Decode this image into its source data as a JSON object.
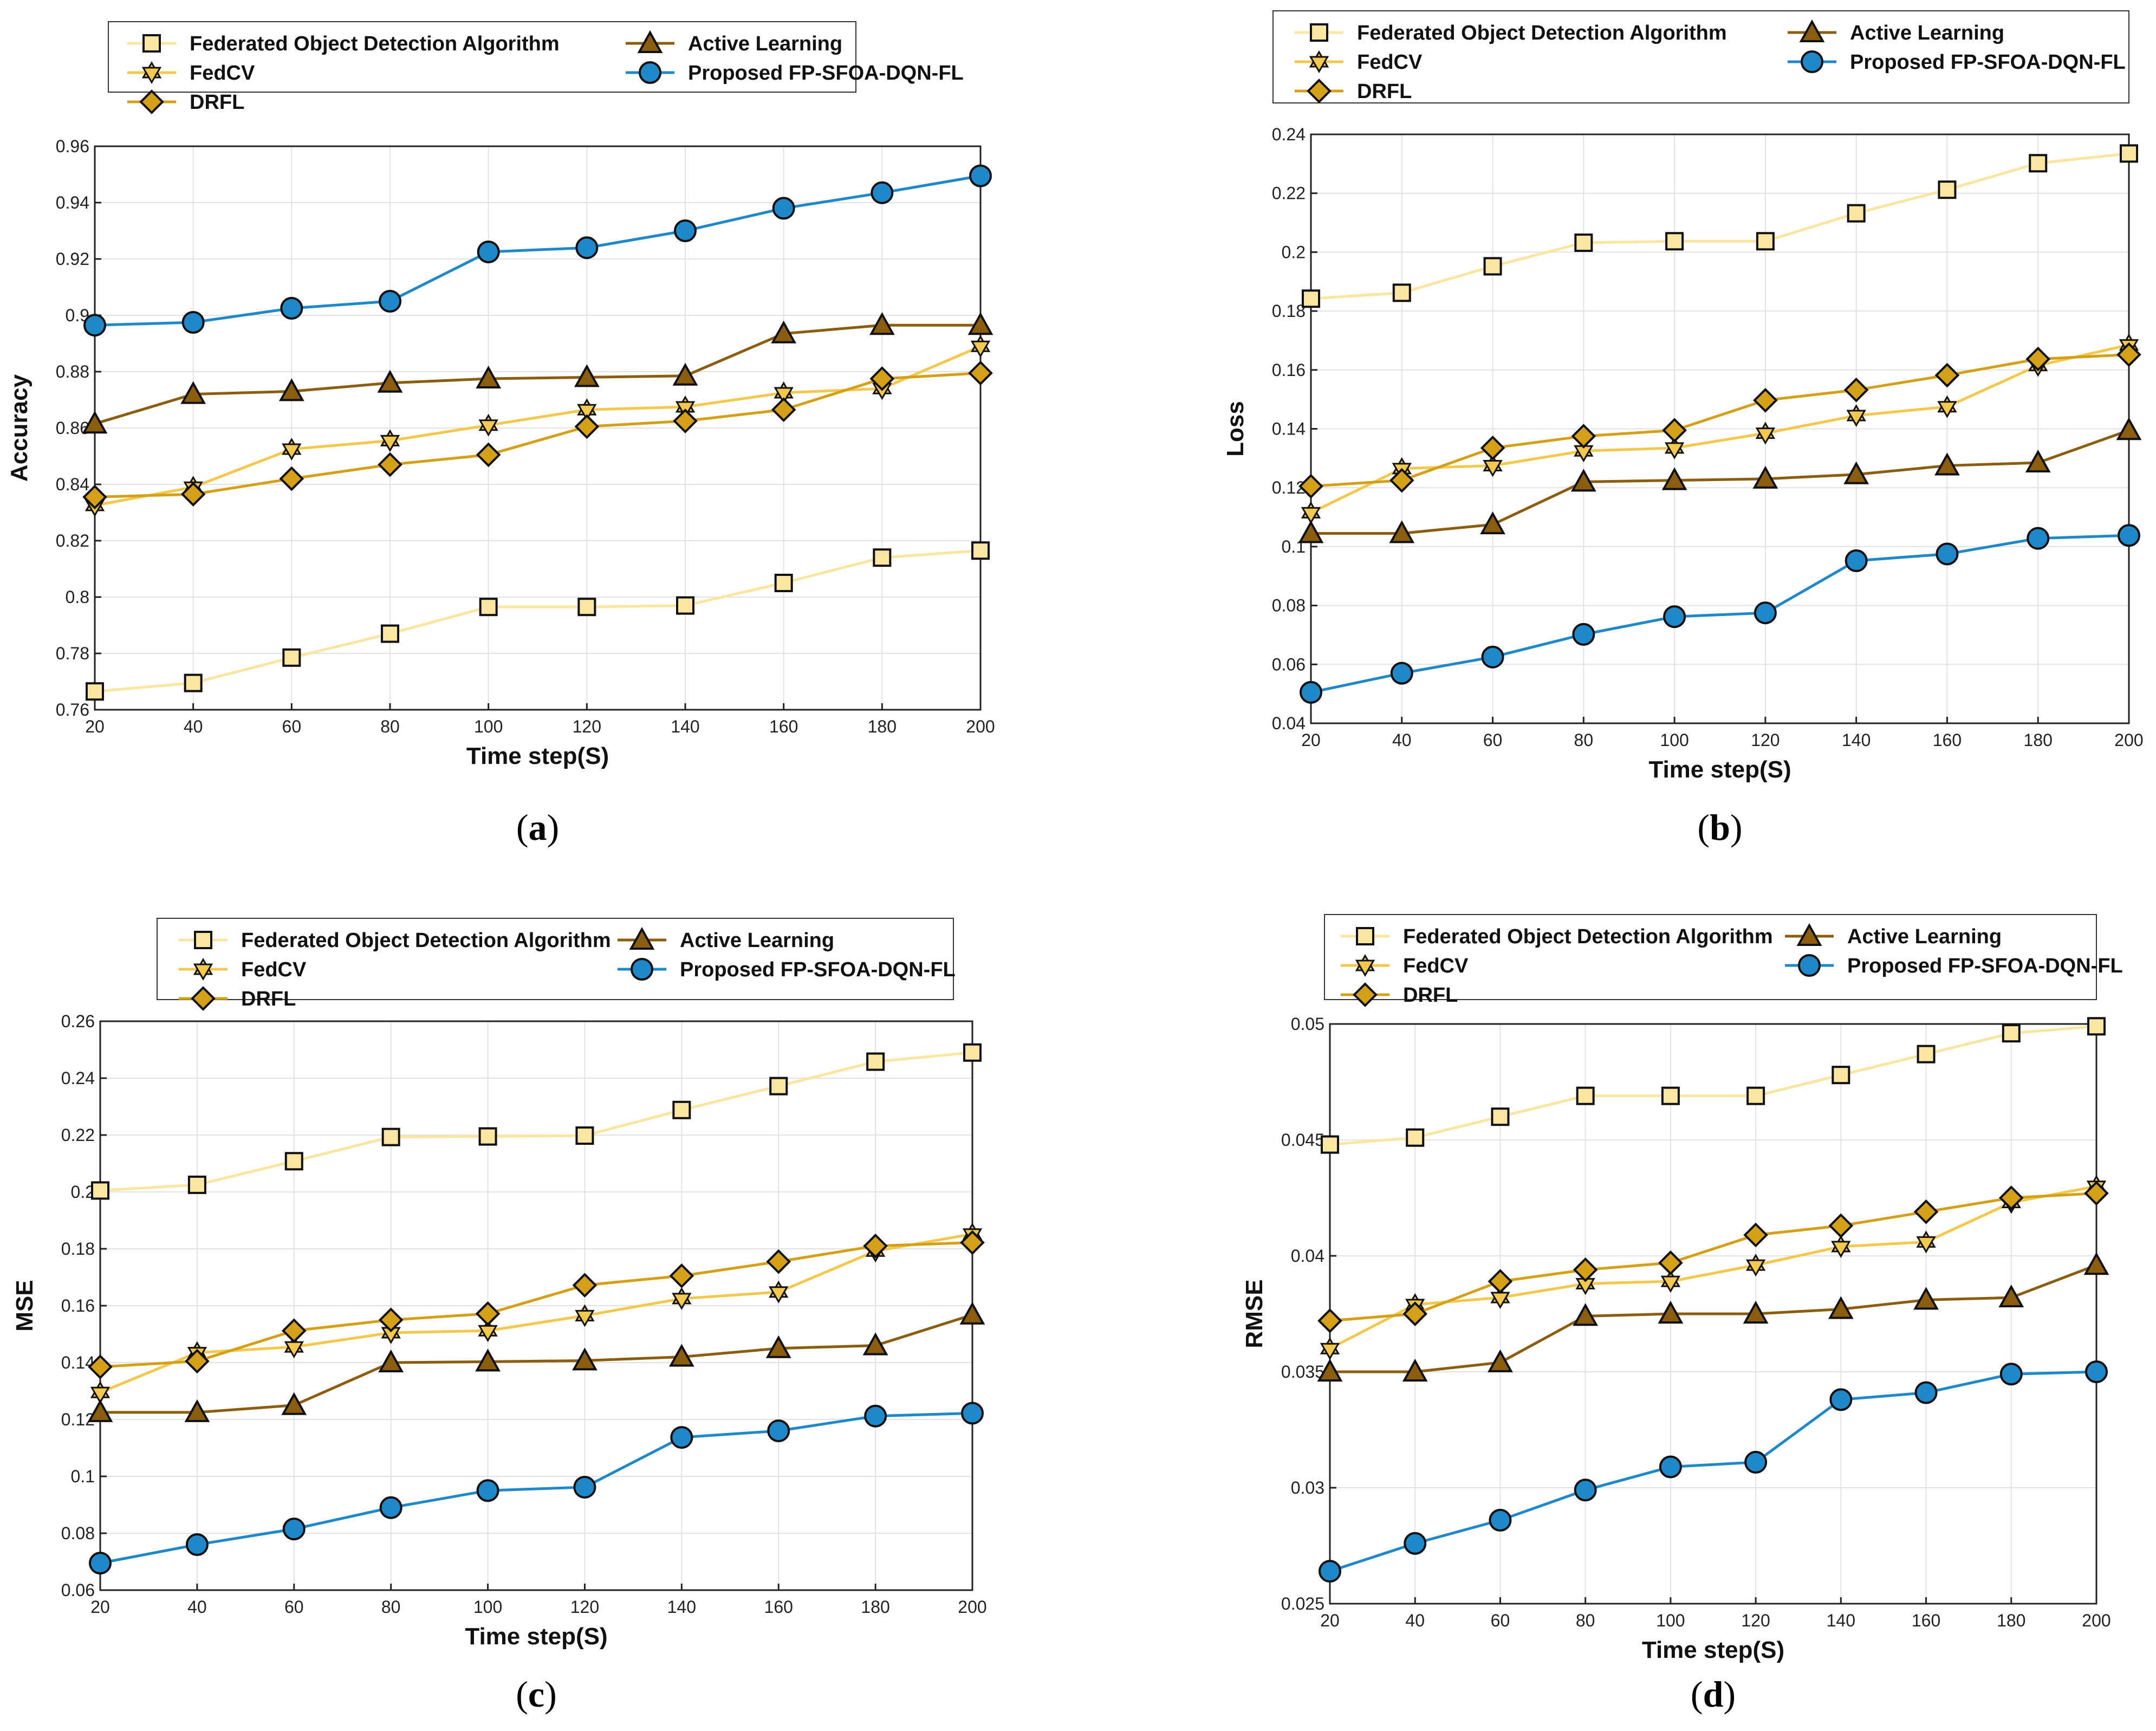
{
  "colors": {
    "fod": "#FAE6A0",
    "fedcv": "#F2C94C",
    "drfl": "#D4A017",
    "al": "#8B5E0F",
    "prop": "#1E88C8",
    "axis": "#222222",
    "grid": "#E2E2E2"
  },
  "chart_data": [
    {
      "type": "line",
      "caption": "a",
      "xlabel": "Time step(S)",
      "ylabel": "Accuracy",
      "xlim": [
        20,
        200
      ],
      "ylim": [
        0.76,
        0.96
      ],
      "xticks": [
        "20",
        "40",
        "60",
        "80",
        "100",
        "120",
        "140",
        "160",
        "180",
        "200"
      ],
      "yticks": [
        "0.76",
        "0.78",
        "0.8",
        "0.82",
        "0.84",
        "0.86",
        "0.88",
        "0.9",
        "0.92",
        "0.94",
        "0.96"
      ],
      "x": [
        20,
        40,
        60,
        80,
        100,
        120,
        140,
        160,
        180,
        200
      ],
      "legend": [
        "Federated Object Detection Algorithm",
        "FedCV",
        "DRFL",
        "Active Learning",
        "Proposed FP-SFOA-DQN-FL"
      ],
      "series": [
        {
          "name": "Federated Object Detection Algorithm",
          "key": "fod",
          "marker": "square",
          "values": [
            0.7665,
            0.7695,
            0.7785,
            0.787,
            0.7965,
            0.7965,
            0.797,
            0.805,
            0.814,
            0.8165
          ]
        },
        {
          "name": "FedCV",
          "key": "fedcv",
          "marker": "hexagram",
          "values": [
            0.8325,
            0.839,
            0.8525,
            0.8555,
            0.861,
            0.8665,
            0.8675,
            0.8725,
            0.874,
            0.889
          ]
        },
        {
          "name": "DRFL",
          "key": "drfl",
          "marker": "diamond",
          "values": [
            0.8355,
            0.8365,
            0.842,
            0.847,
            0.8505,
            0.8605,
            0.8625,
            0.8665,
            0.8775,
            0.8795
          ]
        },
        {
          "name": "Active Learning",
          "key": "al",
          "marker": "triangle",
          "values": [
            0.8615,
            0.872,
            0.873,
            0.876,
            0.8775,
            0.878,
            0.8785,
            0.8935,
            0.8965,
            0.8965
          ]
        },
        {
          "name": "Proposed FP-SFOA-DQN-FL",
          "key": "prop",
          "marker": "circle",
          "values": [
            0.8965,
            0.8975,
            0.9025,
            0.905,
            0.9225,
            0.924,
            0.93,
            0.938,
            0.9435,
            0.9495
          ]
        }
      ]
    },
    {
      "type": "line",
      "caption": "b",
      "xlabel": "Time step(S)",
      "ylabel": "Loss",
      "xlim": [
        20,
        200
      ],
      "ylim": [
        0.04,
        0.24
      ],
      "xticks": [
        "20",
        "40",
        "60",
        "80",
        "100",
        "120",
        "140",
        "160",
        "180",
        "200"
      ],
      "yticks": [
        "0.04",
        "0.06",
        "0.08",
        "0.1",
        "0.12",
        "0.14",
        "0.16",
        "0.18",
        "0.2",
        "0.22",
        "0.24"
      ],
      "x": [
        20,
        40,
        60,
        80,
        100,
        120,
        140,
        160,
        180,
        200
      ],
      "legend": [
        "Federated Object Detection Algorithm",
        "FedCV",
        "DRFL",
        "Active Learning",
        "Proposed FP-SFOA-DQN-FL"
      ],
      "series": [
        {
          "name": "Federated Object Detection Algorithm",
          "key": "fod",
          "marker": "square",
          "values": [
            0.1842,
            0.1862,
            0.1952,
            0.2032,
            0.2037,
            0.2037,
            0.2132,
            0.2212,
            0.2302,
            0.2335
          ]
        },
        {
          "name": "FedCV",
          "key": "fedcv",
          "marker": "hexagram",
          "values": [
            0.1115,
            0.1265,
            0.1275,
            0.1325,
            0.1335,
            0.1385,
            0.1445,
            0.1475,
            0.1615,
            0.1685
          ]
        },
        {
          "name": "DRFL",
          "key": "drfl",
          "marker": "diamond",
          "values": [
            0.1205,
            0.1225,
            0.1335,
            0.1375,
            0.1395,
            0.1497,
            0.1532,
            0.1582,
            0.1637,
            0.1652
          ]
        },
        {
          "name": "Active Learning",
          "key": "al",
          "marker": "triangle",
          "values": [
            0.1045,
            0.1045,
            0.1075,
            0.122,
            0.1225,
            0.123,
            0.1245,
            0.1275,
            0.1285,
            0.1395
          ]
        },
        {
          "name": "Proposed FP-SFOA-DQN-FL",
          "key": "prop",
          "marker": "circle",
          "values": [
            0.0505,
            0.057,
            0.0625,
            0.0702,
            0.0762,
            0.0775,
            0.0952,
            0.0975,
            0.1028,
            0.1038
          ]
        }
      ]
    },
    {
      "type": "line",
      "caption": "c",
      "xlabel": "Time step(S)",
      "ylabel": "MSE",
      "xlim": [
        20,
        200
      ],
      "ylim": [
        0.06,
        0.26
      ],
      "xticks": [
        "20",
        "40",
        "60",
        "80",
        "100",
        "120",
        "140",
        "160",
        "180",
        "200"
      ],
      "yticks": [
        "0.06",
        "0.08",
        "0.1",
        "0.12",
        "0.14",
        "0.16",
        "0.18",
        "0.2",
        "0.22",
        "0.24",
        "0.26"
      ],
      "x": [
        20,
        40,
        60,
        80,
        100,
        120,
        140,
        160,
        180,
        200
      ],
      "legend": [
        "Federated Object Detection Algorithm",
        "FedCV",
        "DRFL",
        "Active Learning",
        "Proposed FP-SFOA-DQN-FL"
      ],
      "series": [
        {
          "name": "Federated Object Detection Algorithm",
          "key": "fod",
          "marker": "square",
          "values": [
            0.2005,
            0.2025,
            0.2108,
            0.2193,
            0.2195,
            0.2198,
            0.2288,
            0.2372,
            0.2458,
            0.249
          ]
        },
        {
          "name": "FedCV",
          "key": "fedcv",
          "marker": "hexagram",
          "values": [
            0.1295,
            0.1435,
            0.1455,
            0.1505,
            0.1512,
            0.1565,
            0.1625,
            0.1648,
            0.1792,
            0.1852
          ]
        },
        {
          "name": "DRFL",
          "key": "drfl",
          "marker": "diamond",
          "values": [
            0.1385,
            0.1405,
            0.1512,
            0.155,
            0.1572,
            0.1672,
            0.1705,
            0.1755,
            0.181,
            0.1822
          ]
        },
        {
          "name": "Active Learning",
          "key": "al",
          "marker": "triangle",
          "values": [
            0.1225,
            0.1225,
            0.125,
            0.14,
            0.1403,
            0.1407,
            0.142,
            0.145,
            0.146,
            0.1568
          ]
        },
        {
          "name": "Proposed FP-SFOA-DQN-FL",
          "key": "prop",
          "marker": "circle",
          "values": [
            0.0695,
            0.076,
            0.0815,
            0.089,
            0.095,
            0.0962,
            0.1137,
            0.116,
            0.1212,
            0.1222
          ]
        }
      ]
    },
    {
      "type": "line",
      "caption": "d",
      "xlabel": "Time step(S)",
      "ylabel": "RMSE",
      "xlim": [
        20,
        200
      ],
      "ylim": [
        0.025,
        0.05
      ],
      "xticks": [
        "20",
        "40",
        "60",
        "80",
        "100",
        "120",
        "140",
        "160",
        "180",
        "200"
      ],
      "yticks": [
        "0.025",
        "0.03",
        "0.035",
        "0.04",
        "0.045",
        "0.05"
      ],
      "x": [
        20,
        40,
        60,
        80,
        100,
        120,
        140,
        160,
        180,
        200
      ],
      "legend": [
        "Federated Object Detection Algorithm",
        "FedCV",
        "DRFL",
        "Active Learning",
        "Proposed FP-SFOA-DQN-FL"
      ],
      "series": [
        {
          "name": "Federated Object Detection Algorithm",
          "key": "fod",
          "marker": "square",
          "values": [
            0.0448,
            0.0451,
            0.046,
            0.0469,
            0.0469,
            0.0469,
            0.0478,
            0.0487,
            0.0496,
            0.0499
          ]
        },
        {
          "name": "FedCV",
          "key": "fedcv",
          "marker": "hexagram",
          "values": [
            0.036,
            0.0379,
            0.0382,
            0.0388,
            0.0389,
            0.0396,
            0.0404,
            0.0406,
            0.0423,
            0.043
          ]
        },
        {
          "name": "DRFL",
          "key": "drfl",
          "marker": "diamond",
          "values": [
            0.0372,
            0.0375,
            0.0389,
            0.0394,
            0.0397,
            0.0409,
            0.0413,
            0.0419,
            0.0425,
            0.0427
          ]
        },
        {
          "name": "Active Learning",
          "key": "al",
          "marker": "triangle",
          "values": [
            0.035,
            0.035,
            0.0354,
            0.0374,
            0.0375,
            0.0375,
            0.0377,
            0.0381,
            0.0382,
            0.0396
          ]
        },
        {
          "name": "Proposed FP-SFOA-DQN-FL",
          "key": "prop",
          "marker": "circle",
          "values": [
            0.0264,
            0.0276,
            0.0286,
            0.0299,
            0.0309,
            0.0311,
            0.0338,
            0.0341,
            0.0349,
            0.035
          ]
        }
      ]
    }
  ]
}
